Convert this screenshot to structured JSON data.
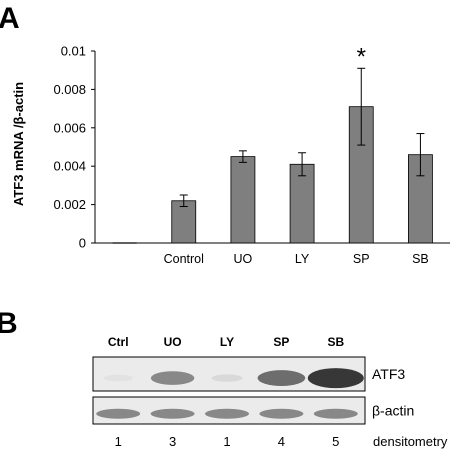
{
  "panel_a": {
    "label": "A",
    "chart_data": {
      "type": "bar",
      "title": "",
      "xlabel": "",
      "ylabel": "ATF3 mRNA /β-actin",
      "ylim": [
        0,
        0.01
      ],
      "yticks": [
        0,
        0.002,
        0.004,
        0.006,
        0.008,
        0.01
      ],
      "ytick_labels": [
        "0",
        "0.002",
        "0.004",
        "0.006",
        "0.008",
        "0.01"
      ],
      "categories": [
        "",
        "Control",
        "UO",
        "LY",
        "SP",
        "SB"
      ],
      "values": [
        0,
        0.0022,
        0.0045,
        0.0041,
        0.0071,
        0.0046
      ],
      "error": [
        0,
        0.0003,
        0.0003,
        0.0006,
        0.002,
        0.0011
      ],
      "annotations": [
        {
          "category": "SP",
          "text": "*"
        }
      ],
      "bar_color": "#7f7f7f",
      "grid": false
    }
  },
  "panel_b": {
    "label": "B",
    "lane_labels": [
      "Ctrl",
      "UO",
      "LY",
      "SP",
      "SB"
    ],
    "bands": [
      {
        "name": "ATF3",
        "intensities": [
          0.05,
          0.55,
          0.1,
          0.7,
          1.0
        ]
      },
      {
        "name": "β-actin",
        "intensities": [
          0.55,
          0.55,
          0.55,
          0.55,
          0.55
        ]
      }
    ],
    "densitometry_values": [
      "1",
      "3",
      "1",
      "4",
      "5"
    ],
    "densitometry_label": "densitometry"
  }
}
